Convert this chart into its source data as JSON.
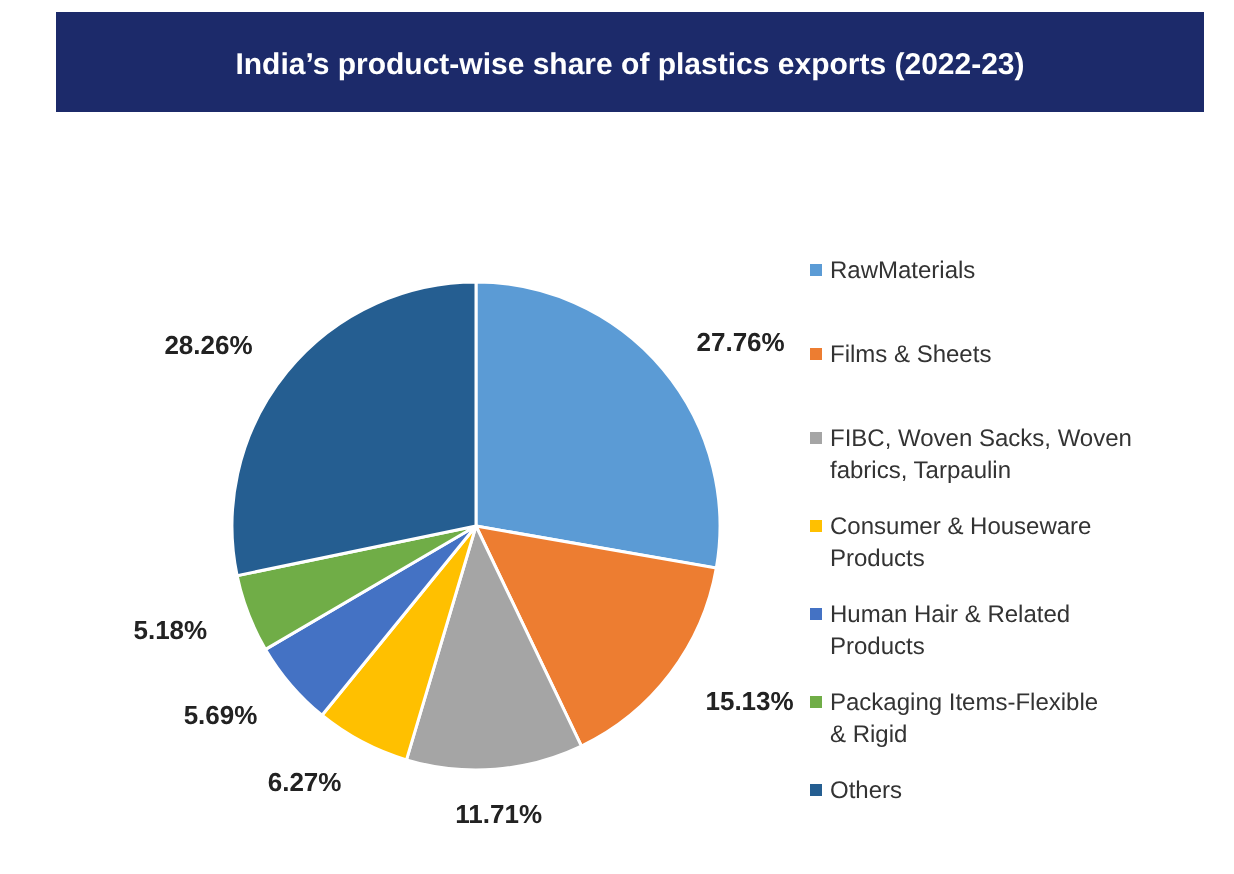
{
  "chart_data": {
    "type": "pie",
    "title": "India’s product-wise share of plastics exports (2022-23)",
    "categories": [
      "RawMaterials",
      "Films & Sheets",
      "FIBC, Woven Sacks, Woven fabrics, Tarpaulin",
      "Consumer & Houseware Products",
      "Human Hair & Related Products",
      "Packaging Items-Flexible & Rigid",
      "Others"
    ],
    "values": [
      27.76,
      15.13,
      11.71,
      6.27,
      5.69,
      5.18,
      28.26
    ],
    "colors": [
      "#5b9bd5",
      "#ed7d31",
      "#a5a5a5",
      "#ffc000",
      "#4472c4",
      "#70ad47",
      "#255e91"
    ],
    "value_labels": [
      "27.76%",
      "15.13%",
      "11.71%",
      "6.27%",
      "5.69%",
      "5.18%",
      "28.26%"
    ],
    "legend": "right"
  }
}
